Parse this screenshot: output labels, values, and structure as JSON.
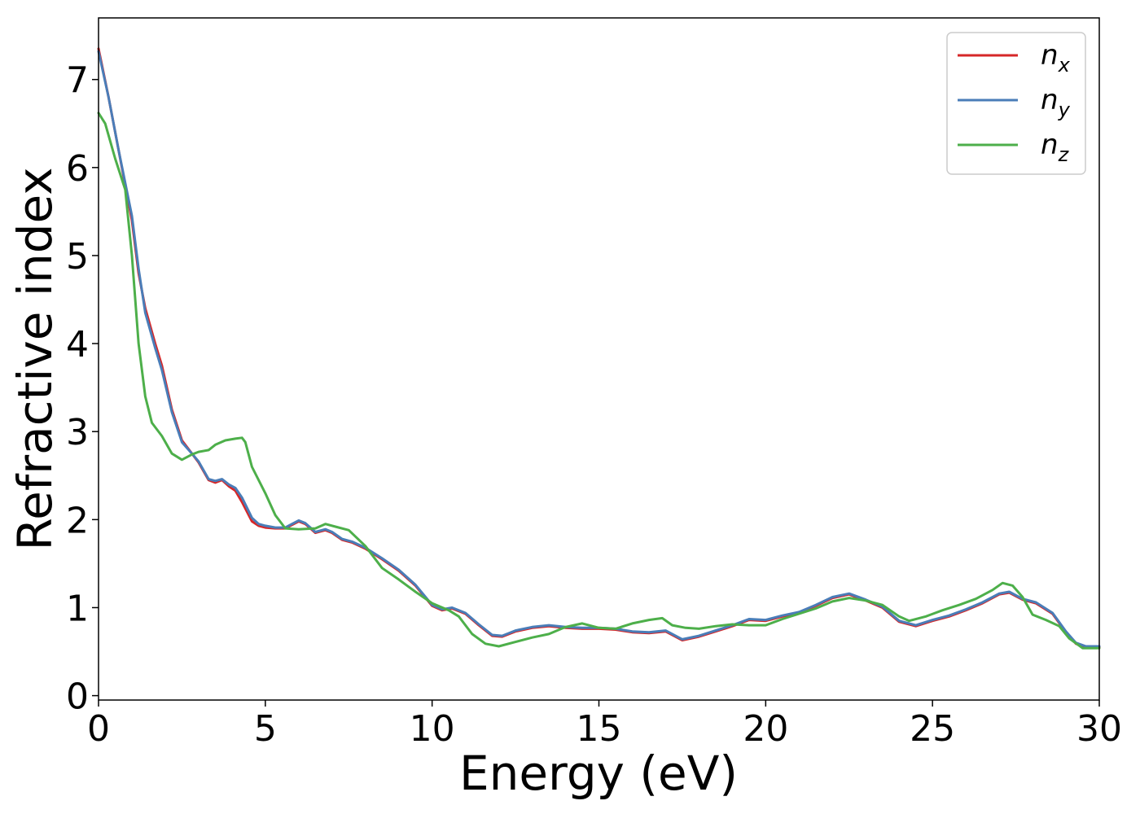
{
  "chart_data": {
    "type": "line",
    "xlabel": "Energy (eV)",
    "ylabel": "Refractive index",
    "xlim": [
      0,
      30
    ],
    "ylim": [
      -0.05,
      7.7
    ],
    "xticks": [
      0,
      5,
      10,
      15,
      20,
      25,
      30
    ],
    "yticks": [
      0,
      1,
      2,
      3,
      4,
      5,
      6,
      7
    ],
    "grid": false,
    "legend_position": "top-right",
    "series": [
      {
        "name": "n",
        "subscript": "x",
        "color": "#d62728",
        "points": [
          [
            0,
            7.35
          ],
          [
            0.3,
            6.8
          ],
          [
            0.6,
            6.2
          ],
          [
            1.0,
            5.4
          ],
          [
            1.2,
            4.8
          ],
          [
            1.4,
            4.4
          ],
          [
            1.7,
            4.0
          ],
          [
            1.9,
            3.75
          ],
          [
            2.2,
            3.25
          ],
          [
            2.5,
            2.9
          ],
          [
            2.8,
            2.75
          ],
          [
            3.0,
            2.65
          ],
          [
            3.3,
            2.45
          ],
          [
            3.5,
            2.42
          ],
          [
            3.7,
            2.45
          ],
          [
            3.9,
            2.38
          ],
          [
            4.1,
            2.33
          ],
          [
            4.3,
            2.2
          ],
          [
            4.6,
            1.98
          ],
          [
            4.8,
            1.93
          ],
          [
            5.0,
            1.91
          ],
          [
            5.3,
            1.9
          ],
          [
            5.6,
            1.9
          ],
          [
            5.8,
            1.94
          ],
          [
            6.0,
            1.98
          ],
          [
            6.2,
            1.95
          ],
          [
            6.5,
            1.85
          ],
          [
            6.8,
            1.88
          ],
          [
            7.0,
            1.85
          ],
          [
            7.3,
            1.77
          ],
          [
            7.6,
            1.74
          ],
          [
            8.0,
            1.67
          ],
          [
            8.5,
            1.55
          ],
          [
            9.0,
            1.42
          ],
          [
            9.5,
            1.25
          ],
          [
            10.0,
            1.02
          ],
          [
            10.3,
            0.97
          ],
          [
            10.6,
            0.99
          ],
          [
            11.0,
            0.93
          ],
          [
            11.4,
            0.8
          ],
          [
            11.8,
            0.68
          ],
          [
            12.1,
            0.67
          ],
          [
            12.5,
            0.73
          ],
          [
            13.0,
            0.77
          ],
          [
            13.5,
            0.79
          ],
          [
            14.0,
            0.77
          ],
          [
            14.5,
            0.76
          ],
          [
            15.0,
            0.76
          ],
          [
            15.5,
            0.75
          ],
          [
            16.0,
            0.72
          ],
          [
            16.5,
            0.71
          ],
          [
            17.0,
            0.73
          ],
          [
            17.5,
            0.63
          ],
          [
            18.0,
            0.67
          ],
          [
            18.5,
            0.73
          ],
          [
            19.0,
            0.79
          ],
          [
            19.5,
            0.86
          ],
          [
            20.0,
            0.85
          ],
          [
            20.5,
            0.9
          ],
          [
            21.0,
            0.94
          ],
          [
            21.5,
            1.02
          ],
          [
            22.0,
            1.11
          ],
          [
            22.5,
            1.15
          ],
          [
            23.0,
            1.08
          ],
          [
            23.5,
            1.0
          ],
          [
            24.0,
            0.84
          ],
          [
            24.5,
            0.79
          ],
          [
            25.0,
            0.85
          ],
          [
            25.5,
            0.9
          ],
          [
            26.0,
            0.97
          ],
          [
            26.5,
            1.05
          ],
          [
            27.0,
            1.15
          ],
          [
            27.3,
            1.17
          ],
          [
            27.7,
            1.09
          ],
          [
            28.1,
            1.05
          ],
          [
            28.6,
            0.93
          ],
          [
            29.0,
            0.72
          ],
          [
            29.3,
            0.59
          ],
          [
            29.6,
            0.55
          ],
          [
            30.0,
            0.55
          ]
        ]
      },
      {
        "name": "n",
        "subscript": "y",
        "color": "#4a7db8",
        "points": [
          [
            0,
            7.32
          ],
          [
            0.3,
            6.8
          ],
          [
            0.6,
            6.2
          ],
          [
            1.0,
            5.45
          ],
          [
            1.2,
            4.85
          ],
          [
            1.4,
            4.35
          ],
          [
            1.7,
            3.95
          ],
          [
            1.9,
            3.7
          ],
          [
            2.2,
            3.22
          ],
          [
            2.5,
            2.88
          ],
          [
            2.8,
            2.75
          ],
          [
            3.0,
            2.66
          ],
          [
            3.3,
            2.46
          ],
          [
            3.5,
            2.44
          ],
          [
            3.7,
            2.46
          ],
          [
            3.9,
            2.4
          ],
          [
            4.1,
            2.36
          ],
          [
            4.3,
            2.25
          ],
          [
            4.6,
            2.02
          ],
          [
            4.8,
            1.95
          ],
          [
            5.0,
            1.93
          ],
          [
            5.3,
            1.91
          ],
          [
            5.6,
            1.91
          ],
          [
            5.8,
            1.95
          ],
          [
            6.0,
            1.99
          ],
          [
            6.2,
            1.96
          ],
          [
            6.5,
            1.86
          ],
          [
            6.8,
            1.89
          ],
          [
            7.0,
            1.86
          ],
          [
            7.3,
            1.78
          ],
          [
            7.6,
            1.75
          ],
          [
            8.0,
            1.68
          ],
          [
            8.5,
            1.56
          ],
          [
            9.0,
            1.43
          ],
          [
            9.5,
            1.26
          ],
          [
            10.0,
            1.03
          ],
          [
            10.3,
            0.98
          ],
          [
            10.6,
            1.0
          ],
          [
            11.0,
            0.94
          ],
          [
            11.4,
            0.81
          ],
          [
            11.8,
            0.69
          ],
          [
            12.1,
            0.68
          ],
          [
            12.5,
            0.74
          ],
          [
            13.0,
            0.78
          ],
          [
            13.5,
            0.8
          ],
          [
            14.0,
            0.78
          ],
          [
            14.5,
            0.77
          ],
          [
            15.0,
            0.77
          ],
          [
            15.5,
            0.76
          ],
          [
            16.0,
            0.73
          ],
          [
            16.5,
            0.72
          ],
          [
            17.0,
            0.74
          ],
          [
            17.5,
            0.64
          ],
          [
            18.0,
            0.68
          ],
          [
            18.5,
            0.74
          ],
          [
            19.0,
            0.8
          ],
          [
            19.5,
            0.87
          ],
          [
            20.0,
            0.86
          ],
          [
            20.5,
            0.91
          ],
          [
            21.0,
            0.95
          ],
          [
            21.5,
            1.03
          ],
          [
            22.0,
            1.12
          ],
          [
            22.5,
            1.16
          ],
          [
            23.0,
            1.09
          ],
          [
            23.5,
            1.01
          ],
          [
            24.0,
            0.85
          ],
          [
            24.5,
            0.8
          ],
          [
            25.0,
            0.86
          ],
          [
            25.5,
            0.91
          ],
          [
            26.0,
            0.98
          ],
          [
            26.5,
            1.06
          ],
          [
            27.0,
            1.16
          ],
          [
            27.3,
            1.18
          ],
          [
            27.7,
            1.1
          ],
          [
            28.1,
            1.06
          ],
          [
            28.6,
            0.94
          ],
          [
            29.0,
            0.73
          ],
          [
            29.3,
            0.6
          ],
          [
            29.6,
            0.56
          ],
          [
            30.0,
            0.56
          ]
        ]
      },
      {
        "name": "n",
        "subscript": "z",
        "color": "#4daf4a",
        "points": [
          [
            0,
            6.62
          ],
          [
            0.2,
            6.5
          ],
          [
            0.5,
            6.1
          ],
          [
            0.8,
            5.75
          ],
          [
            1.0,
            5.0
          ],
          [
            1.2,
            4.0
          ],
          [
            1.4,
            3.4
          ],
          [
            1.6,
            3.1
          ],
          [
            1.9,
            2.95
          ],
          [
            2.2,
            2.75
          ],
          [
            2.5,
            2.68
          ],
          [
            2.8,
            2.74
          ],
          [
            3.0,
            2.77
          ],
          [
            3.3,
            2.79
          ],
          [
            3.5,
            2.85
          ],
          [
            3.8,
            2.9
          ],
          [
            4.1,
            2.92
          ],
          [
            4.3,
            2.93
          ],
          [
            4.4,
            2.88
          ],
          [
            4.6,
            2.6
          ],
          [
            5.0,
            2.3
          ],
          [
            5.3,
            2.05
          ],
          [
            5.6,
            1.9
          ],
          [
            6.0,
            1.89
          ],
          [
            6.5,
            1.9
          ],
          [
            6.8,
            1.95
          ],
          [
            7.1,
            1.92
          ],
          [
            7.5,
            1.88
          ],
          [
            8.0,
            1.7
          ],
          [
            8.5,
            1.45
          ],
          [
            9.0,
            1.32
          ],
          [
            9.5,
            1.18
          ],
          [
            10.0,
            1.05
          ],
          [
            10.5,
            0.97
          ],
          [
            10.8,
            0.9
          ],
          [
            11.2,
            0.7
          ],
          [
            11.6,
            0.59
          ],
          [
            12.0,
            0.56
          ],
          [
            12.5,
            0.61
          ],
          [
            13.0,
            0.66
          ],
          [
            13.5,
            0.7
          ],
          [
            14.0,
            0.78
          ],
          [
            14.5,
            0.82
          ],
          [
            15.0,
            0.77
          ],
          [
            15.5,
            0.76
          ],
          [
            16.0,
            0.82
          ],
          [
            16.5,
            0.86
          ],
          [
            16.9,
            0.88
          ],
          [
            17.2,
            0.8
          ],
          [
            17.6,
            0.77
          ],
          [
            18.0,
            0.76
          ],
          [
            18.5,
            0.79
          ],
          [
            19.0,
            0.81
          ],
          [
            19.5,
            0.8
          ],
          [
            20.0,
            0.8
          ],
          [
            20.5,
            0.87
          ],
          [
            21.0,
            0.93
          ],
          [
            21.5,
            0.99
          ],
          [
            22.0,
            1.07
          ],
          [
            22.5,
            1.11
          ],
          [
            23.0,
            1.08
          ],
          [
            23.5,
            1.03
          ],
          [
            24.0,
            0.9
          ],
          [
            24.3,
            0.85
          ],
          [
            24.8,
            0.9
          ],
          [
            25.3,
            0.97
          ],
          [
            25.8,
            1.03
          ],
          [
            26.3,
            1.1
          ],
          [
            26.8,
            1.2
          ],
          [
            27.1,
            1.28
          ],
          [
            27.4,
            1.25
          ],
          [
            27.7,
            1.12
          ],
          [
            28.0,
            0.92
          ],
          [
            28.4,
            0.86
          ],
          [
            28.8,
            0.79
          ],
          [
            29.1,
            0.65
          ],
          [
            29.5,
            0.54
          ],
          [
            30.0,
            0.54
          ]
        ]
      }
    ]
  }
}
